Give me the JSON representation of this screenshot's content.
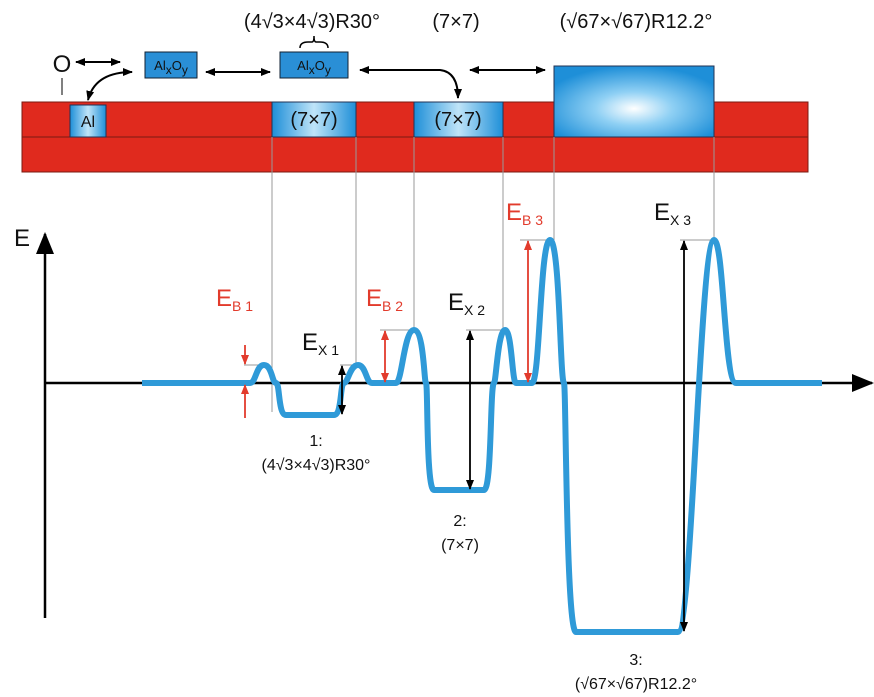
{
  "top_labels": [
    "(4√3×4√3)R30°",
    "(7×7)",
    "(√67×√67)R12.2°"
  ],
  "species": {
    "oxygen": "O",
    "aluminum": "Al",
    "oxide_1": {
      "base1": "Al",
      "sub1": "x",
      "base2": "O",
      "sub2": "y"
    },
    "oxide_2": {
      "base1": "Al",
      "sub1": "x",
      "base2": "O",
      "sub2": "y"
    }
  },
  "surface_blocks": [
    "(7×7)",
    "(7×7)"
  ],
  "axis": {
    "y_label": "E"
  },
  "barriers": [
    {
      "symbol": "E",
      "subscript": "B 1"
    },
    {
      "symbol": "E",
      "subscript": "B 2"
    },
    {
      "symbol": "E",
      "subscript": "B 3"
    }
  ],
  "exchange": [
    {
      "symbol": "E",
      "subscript": "X 1"
    },
    {
      "symbol": "E",
      "subscript": "X 2"
    },
    {
      "symbol": "E",
      "subscript": "X 3"
    }
  ],
  "minima": [
    {
      "index": "1:",
      "structure": "(4√3×4√3)R30°"
    },
    {
      "index": "2:",
      "structure": "(7×7)"
    },
    {
      "index": "3:",
      "structure": "(√67×√67)R12.2°"
    }
  ]
}
